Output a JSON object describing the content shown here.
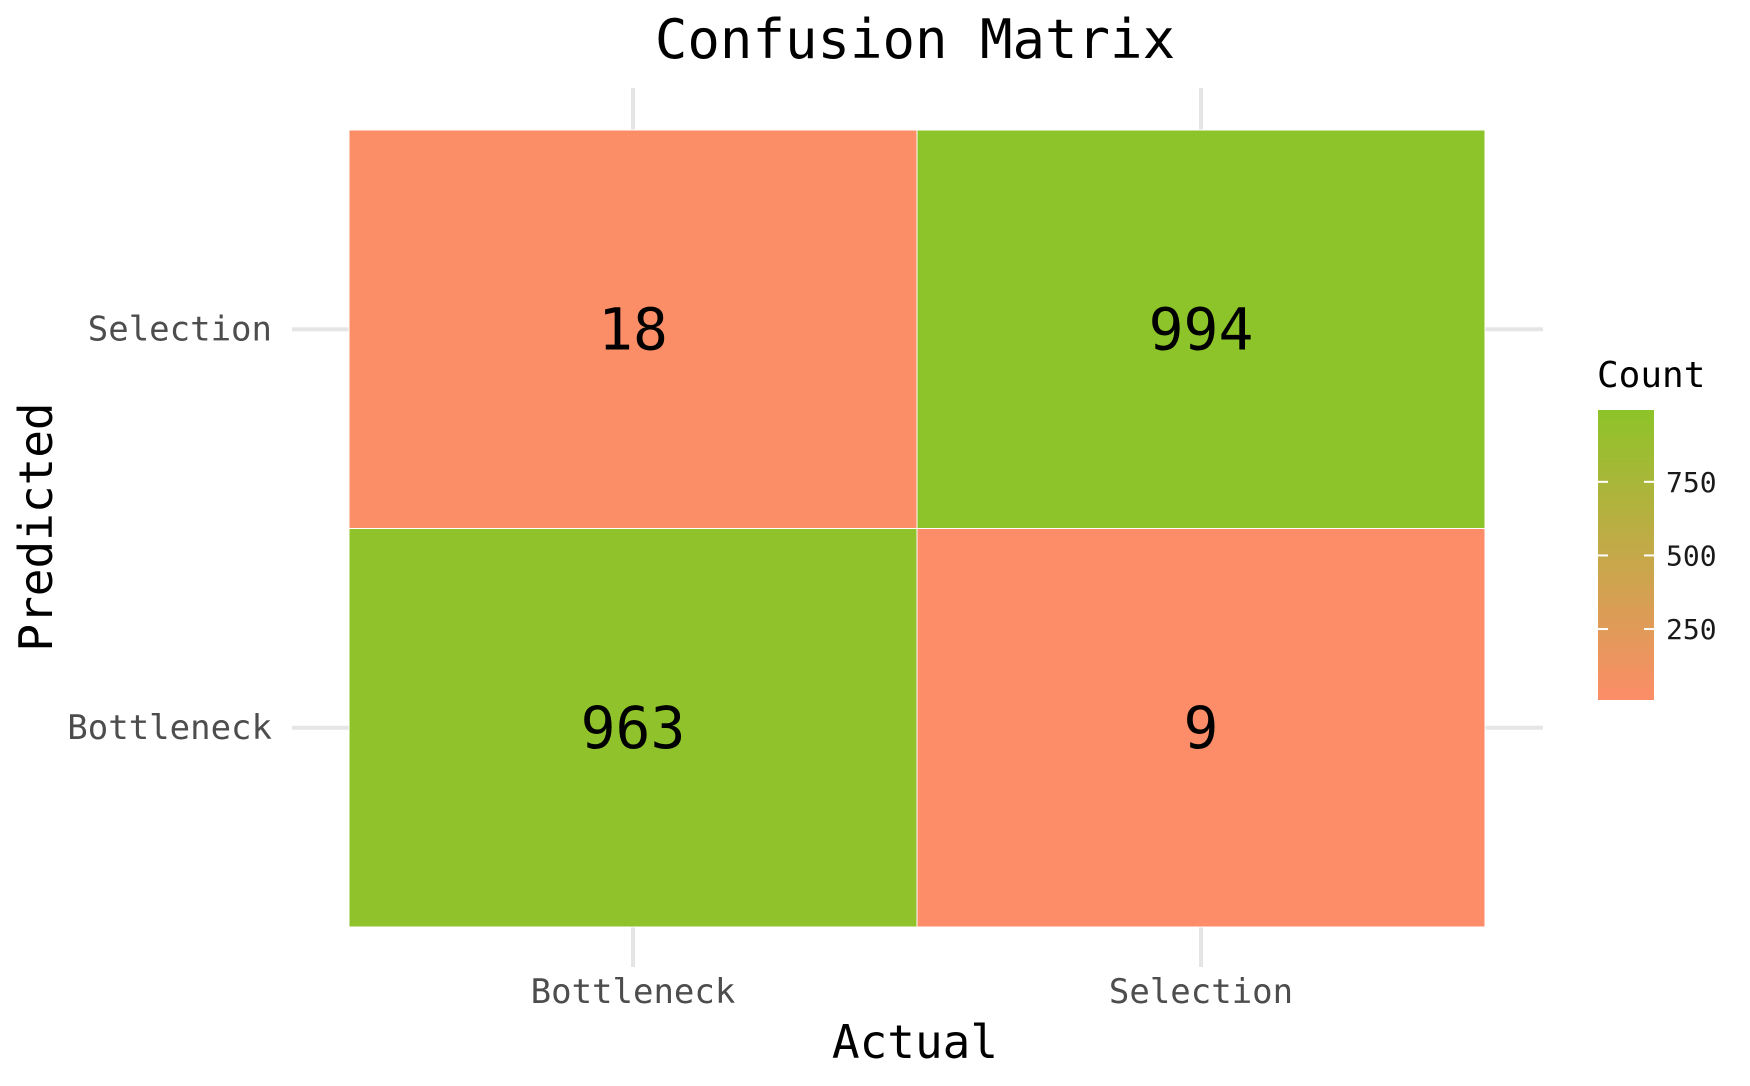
{
  "chart_data": {
    "type": "heatmap",
    "title": "Confusion Matrix",
    "xlabel": "Actual",
    "ylabel": "Predicted",
    "x_categories": [
      "Bottleneck",
      "Selection"
    ],
    "y_categories": [
      "Bottleneck",
      "Selection"
    ],
    "cells": [
      {
        "actual": "Bottleneck",
        "predicted": "Selection",
        "value": 18
      },
      {
        "actual": "Selection",
        "predicted": "Selection",
        "value": 994
      },
      {
        "actual": "Bottleneck",
        "predicted": "Bottleneck",
        "value": 963
      },
      {
        "actual": "Selection",
        "predicted": "Bottleneck",
        "value": 9
      }
    ],
    "legend": {
      "title": "Count",
      "ticks": [
        250,
        500,
        750
      ],
      "tick_labels": [
        "250",
        "500",
        "750"
      ],
      "range": [
        9,
        994
      ],
      "low_color": "#fc8d68",
      "high_color": "#8dc429",
      "placement": "right"
    },
    "grid": true
  }
}
